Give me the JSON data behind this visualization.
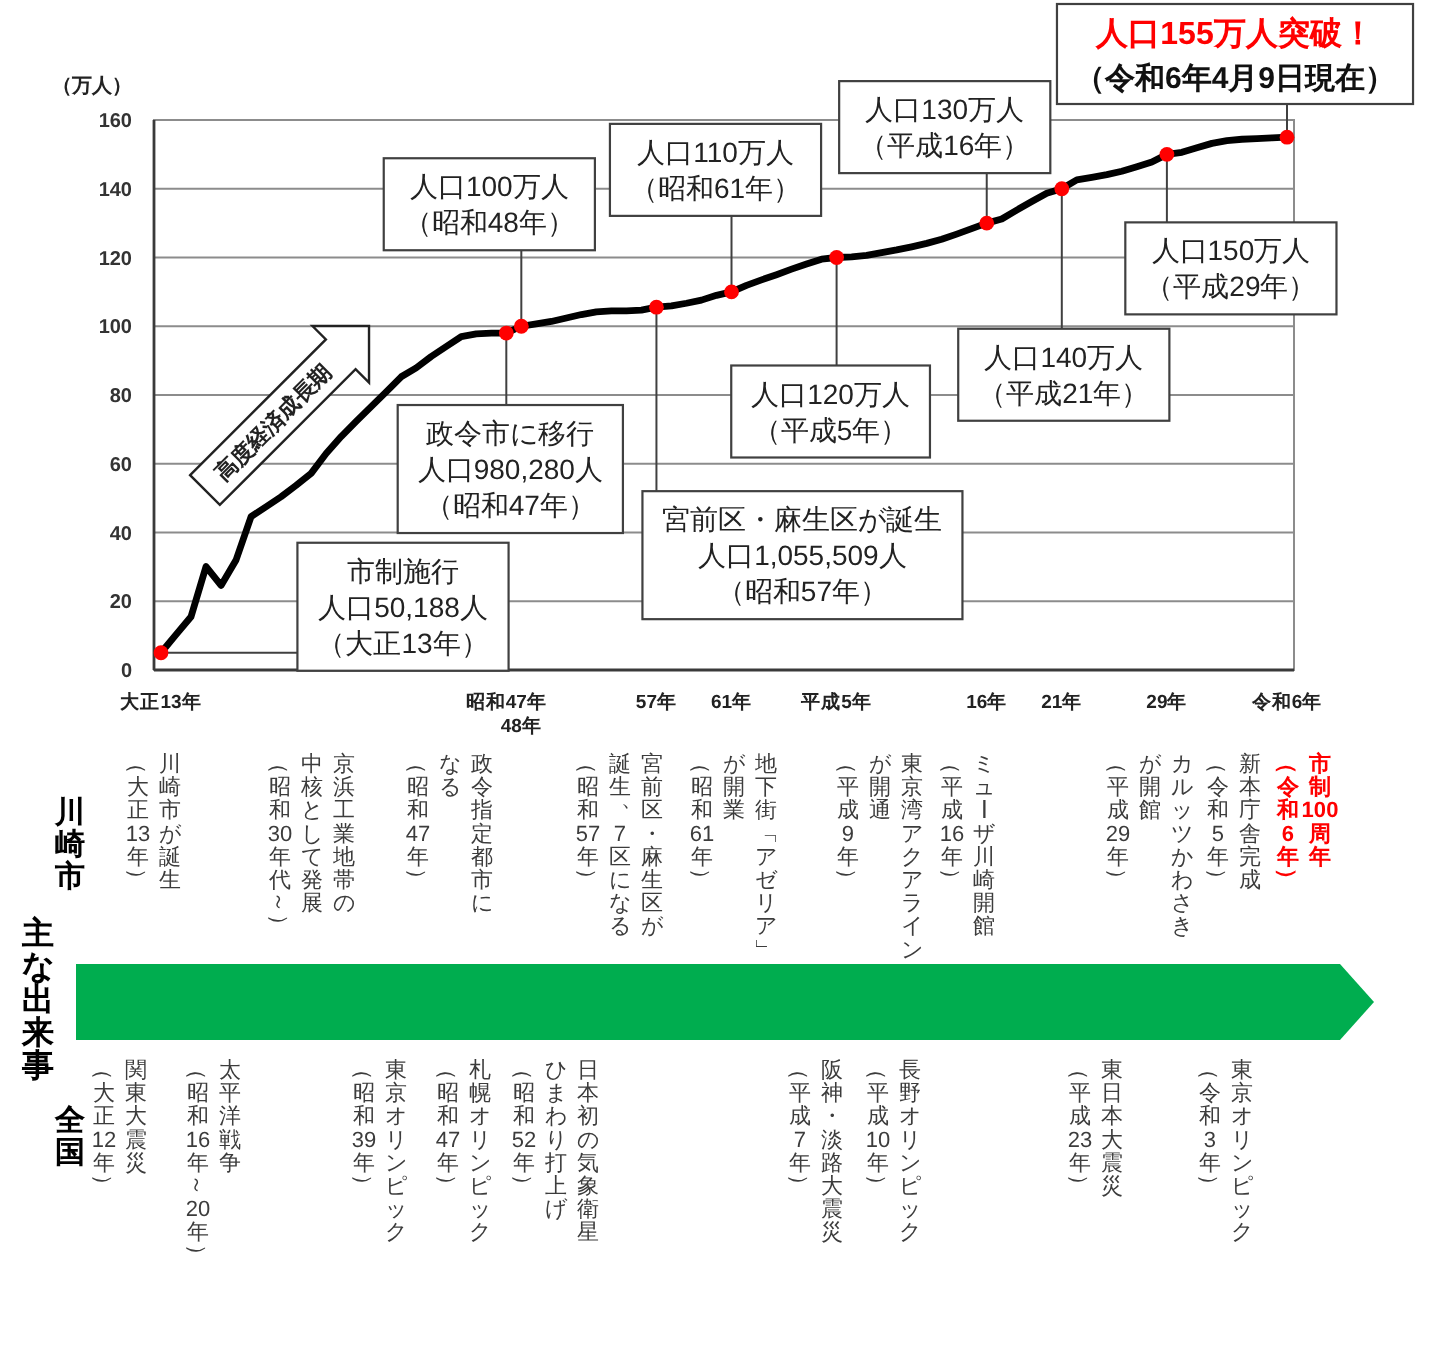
{
  "chart_data": [
    {
      "type": "line",
      "title": "人口155万人突破！",
      "subtitle": "（令和6年4月9日現在）",
      "ylabel": "（万人）",
      "categories": [
        "大正13年",
        null,
        null,
        null,
        null,
        null,
        null,
        null,
        null,
        null,
        null,
        null,
        null,
        null,
        null,
        null,
        null,
        null,
        null,
        null,
        null,
        null,
        null,
        "昭和47年",
        "48年",
        null,
        null,
        null,
        null,
        null,
        null,
        null,
        null,
        "57年",
        null,
        null,
        null,
        null,
        "61年",
        null,
        null,
        null,
        null,
        null,
        null,
        "平成5年",
        null,
        null,
        null,
        null,
        null,
        null,
        null,
        null,
        null,
        "16年",
        null,
        null,
        null,
        null,
        "21年",
        null,
        null,
        null,
        null,
        null,
        null,
        "29年",
        null,
        null,
        null,
        null,
        null,
        null,
        null,
        "令和6年"
      ],
      "series": [
        {
          "type": "line",
          "color": "#000000",
          "values": [
            5.0188,
            10.3,
            15.5,
            30.1,
            24.6,
            32.0,
            44.6,
            47.5,
            50.4,
            53.7,
            57.2,
            63.0,
            67.9,
            72.3,
            76.6,
            80.9,
            85.3,
            87.9,
            91.2,
            94.1,
            97.0,
            97.8,
            98.0,
            98.028,
            100,
            100.7,
            101.4,
            102.4,
            103.4,
            104.2,
            104.5,
            104.5,
            104.7,
            105.5509,
            105.9,
            106.7,
            107.6,
            109.0,
            110,
            111.9,
            113.5,
            115.0,
            116.6,
            118.1,
            119.5,
            120,
            120.2,
            120.6,
            121.4,
            122.2,
            123.1,
            124.1,
            125.3,
            126.8,
            128.4,
            130,
            131.2,
            133.8,
            136.3,
            138.7,
            140,
            142.6,
            143.3,
            144.1,
            145.1,
            146.4,
            147.8,
            150,
            150.6,
            151.9,
            153.2,
            154.0,
            154.4,
            154.6,
            154.8,
            155
          ]
        },
        {
          "type": "scatter",
          "color": "#ff0000",
          "marker": "circle",
          "values": [
            5.0188,
            null,
            null,
            null,
            null,
            null,
            null,
            null,
            null,
            null,
            null,
            null,
            null,
            null,
            null,
            null,
            null,
            null,
            null,
            null,
            null,
            null,
            null,
            98.028,
            100,
            null,
            null,
            null,
            null,
            null,
            null,
            null,
            null,
            105.5509,
            null,
            null,
            null,
            null,
            110,
            null,
            null,
            null,
            null,
            null,
            null,
            120,
            null,
            null,
            null,
            null,
            null,
            null,
            null,
            null,
            null,
            130,
            null,
            null,
            null,
            null,
            140,
            null,
            null,
            null,
            null,
            null,
            null,
            150,
            null,
            null,
            null,
            null,
            null,
            null,
            null,
            155
          ]
        }
      ],
      "ylim": [
        0,
        160
      ],
      "yticks": [
        0,
        20,
        40,
        60,
        80,
        100,
        120,
        140,
        160
      ],
      "grid": "y",
      "annotations": [
        {
          "text": "市制施行人口50,188人（大正13年）",
          "x": "大正13年",
          "y": 5.0188
        },
        {
          "text": "政令市に移行人口980,280人（昭和47年）",
          "x": "昭和47年",
          "y": 98.028
        },
        {
          "text": "人口100万人（昭和48年）",
          "x": "48年",
          "y": 100
        },
        {
          "text": "宮前区・麻生区が誕生人口1,055,509人（昭和57年）",
          "x": "57年",
          "y": 105.5509
        },
        {
          "text": "人口110万人（昭和61年）",
          "x": "61年",
          "y": 110
        },
        {
          "text": "人口120万人（平成5年）",
          "x": "平成5年",
          "y": 120
        },
        {
          "text": "人口130万人（平成16年）",
          "x": "16年",
          "y": 130
        },
        {
          "text": "人口140万人（平成21年）",
          "x": "21年",
          "y": 140
        },
        {
          "text": "人口150万人（平成29年）",
          "x": "29年",
          "y": 150
        },
        "高度経済成長期"
      ]
    },
    {
      "type": "other",
      "title": "主な出来事",
      "y_categories": [
        "川崎市",
        "全国"
      ],
      "annotations": [
        {
          "text": "川崎市が誕生（大正13年）",
          "y": "川崎市"
        },
        {
          "text": "京浜工業地帯の中核として発展（昭和30年代～）",
          "y": "川崎市"
        },
        {
          "text": "政令指定都市になる（昭和47年）",
          "y": "川崎市"
        },
        {
          "text": "宮前区・麻生区が誕生、7区になる（昭和57年）",
          "y": "川崎市"
        },
        {
          "text": "地下街「アゼリア」が開業（昭和61年）",
          "y": "川崎市"
        },
        {
          "text": "東京湾アクアラインが開通（平成9年）",
          "y": "川崎市"
        },
        {
          "text": "ミューザ川崎開館（平成16年）",
          "y": "川崎市"
        },
        {
          "text": "カルッツかわさきが開館（平成29年）",
          "y": "川崎市"
        },
        {
          "text": "新本庁舎完成（令和5年）",
          "y": "川崎市"
        },
        {
          "text": "市制100周年（令和6年）",
          "y": "川崎市"
        },
        {
          "text": "関東大震災（大正12年）",
          "y": "全国"
        },
        {
          "text": "太平洋戦争（昭和16年～20年）",
          "y": "全国"
        },
        {
          "text": "東京オリンピック（昭和39年）",
          "y": "全国"
        },
        {
          "text": "札幌オリンピック（昭和47年）",
          "y": "全国"
        },
        {
          "text": "日本初の気象衛星ひまわり打上げ（昭和52年）",
          "y": "全国"
        },
        {
          "text": "阪神・淡路大震災（平成7年）",
          "y": "全国"
        },
        {
          "text": "長野オリンピック（平成10年）",
          "y": "全国"
        },
        {
          "text": "東日本大震災（平成23年）",
          "y": "全国"
        },
        {
          "text": "東京オリンピック（令和3年）",
          "y": "全国"
        }
      ]
    }
  ]
}
